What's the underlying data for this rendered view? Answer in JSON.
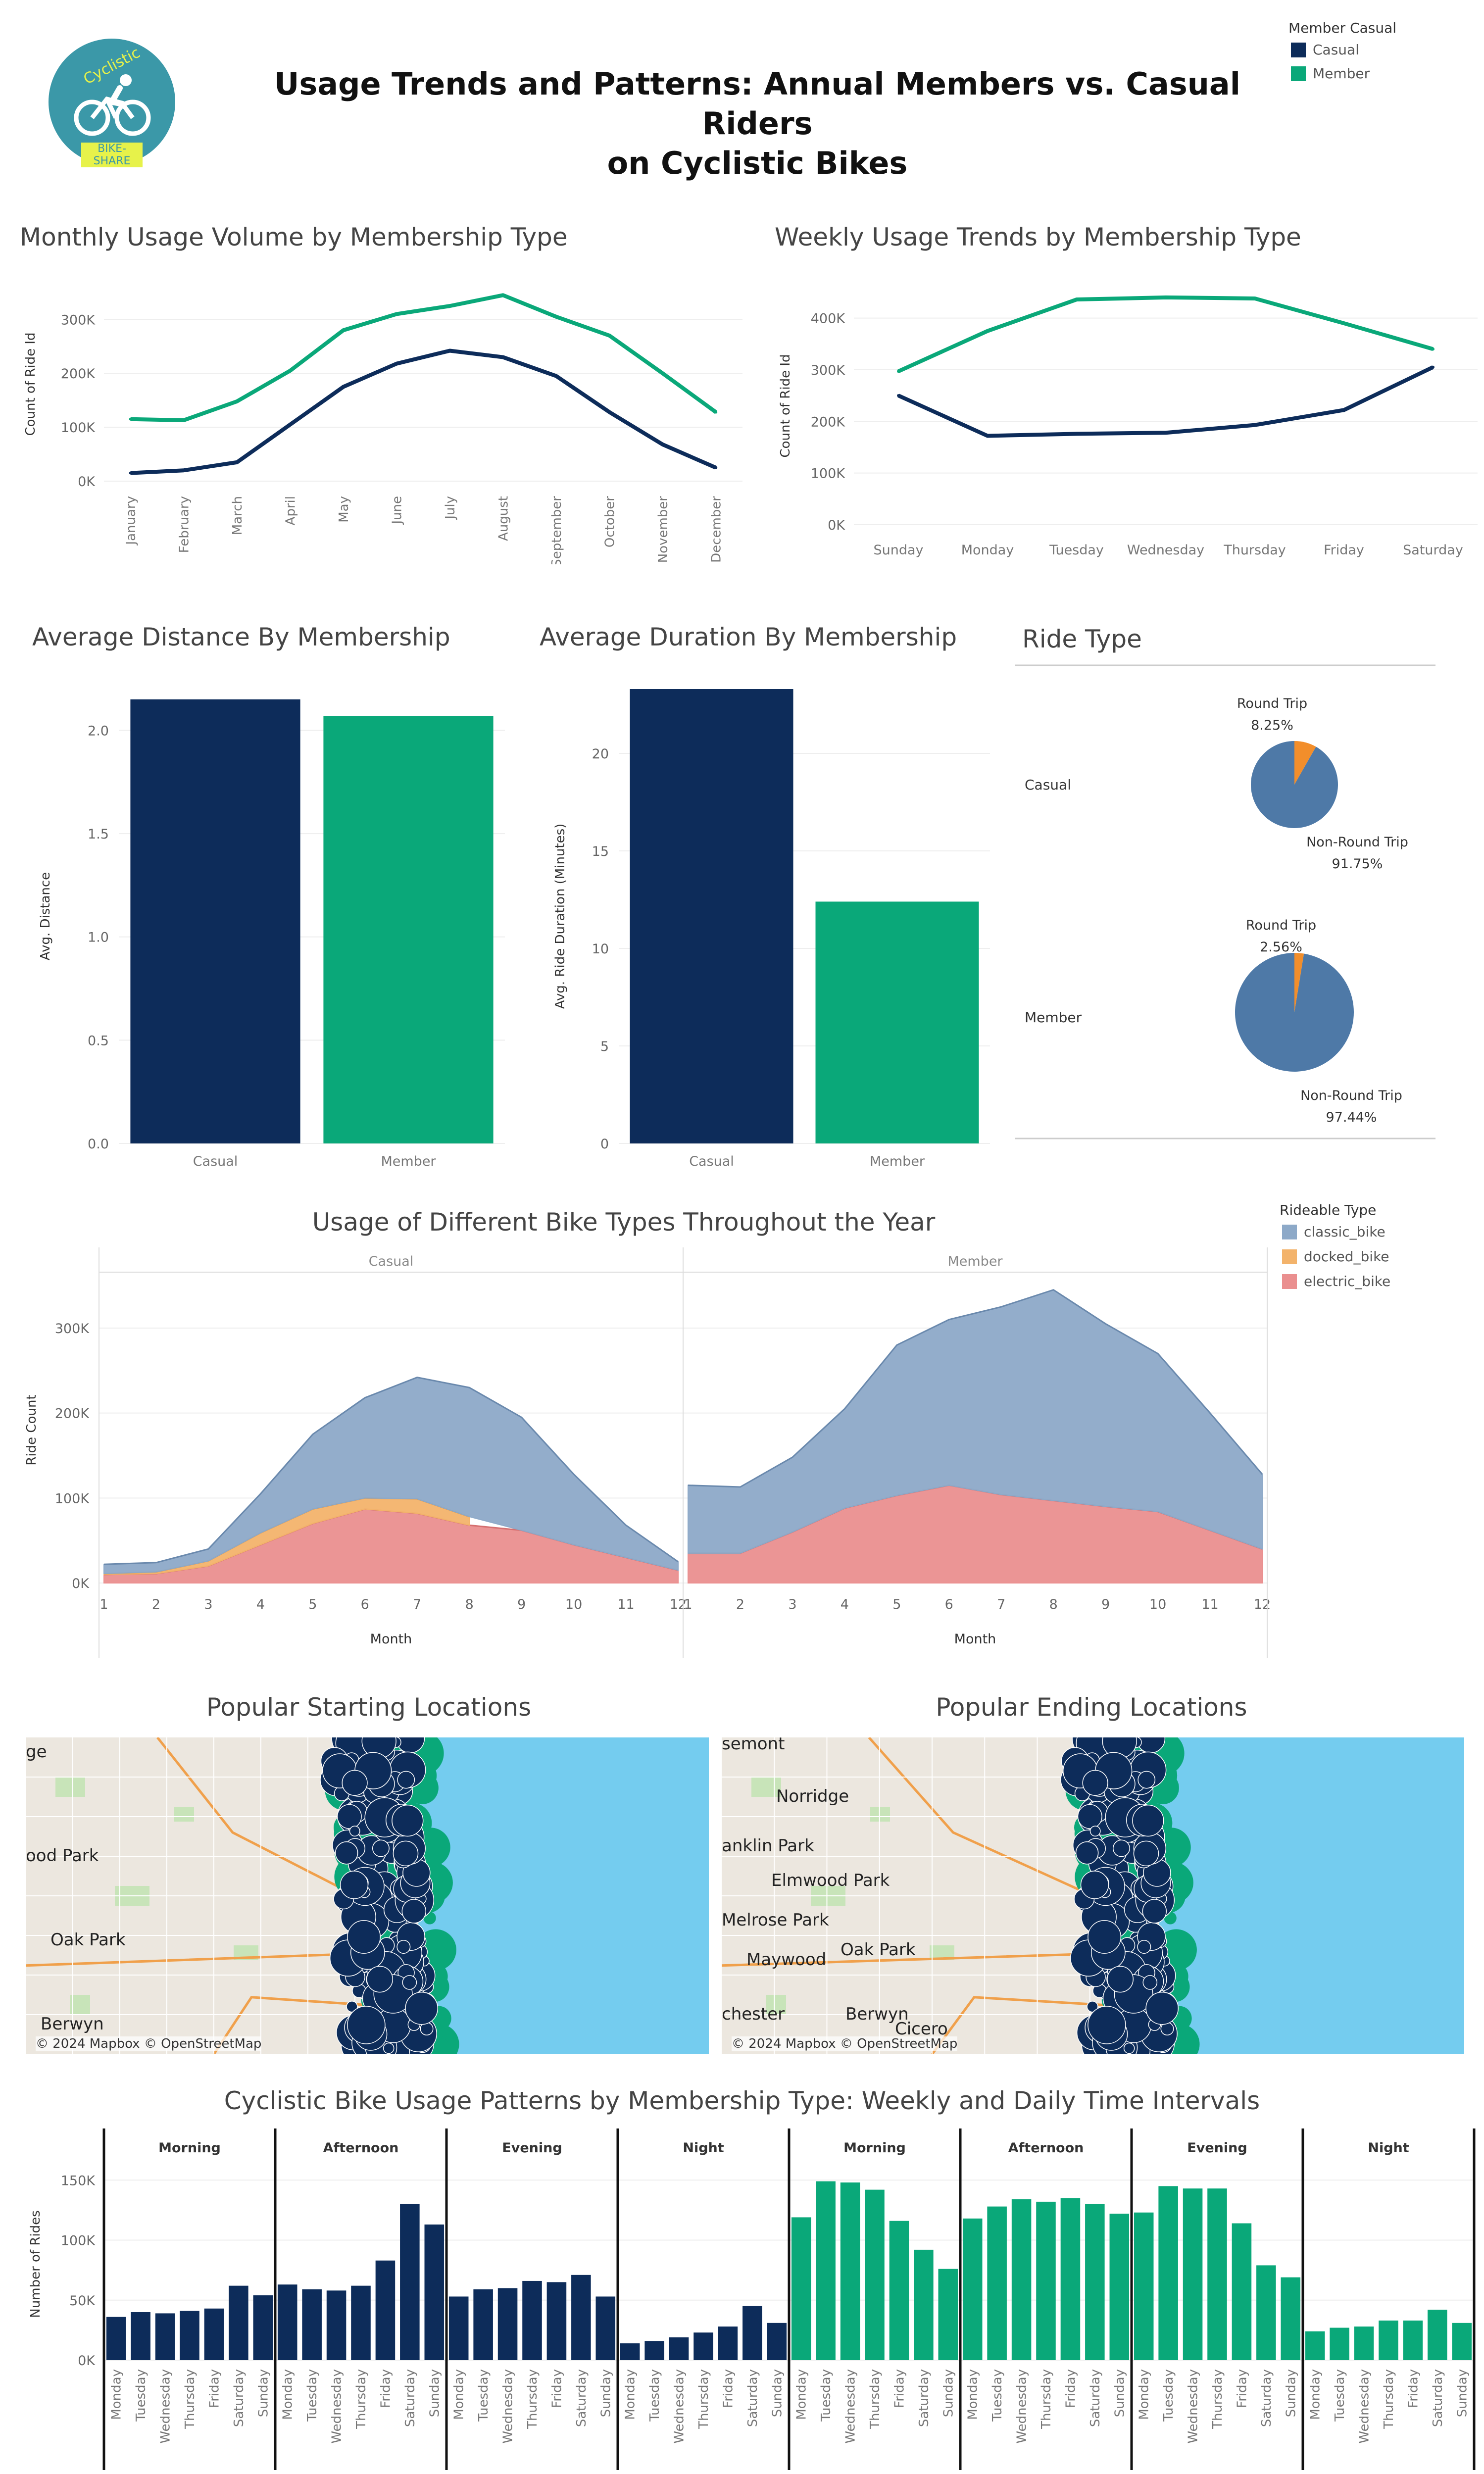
{
  "header": {
    "title_line1": "Usage Trends and Patterns: Annual Members vs. Casual Riders",
    "title_line2": "on Cyclistic Bikes",
    "logo_top": "Cyclistic",
    "logo_bottom": "BIKE-SHARE"
  },
  "legend_member": {
    "title": "Member Casual",
    "items": [
      {
        "label": "Casual",
        "color": "#0d2c5a"
      },
      {
        "label": "Member",
        "color": "#0aa879"
      }
    ]
  },
  "colors": {
    "casual": "#0d2c5a",
    "member": "#0aa879",
    "classic": "#8da9c8",
    "docked": "#f3b36b",
    "electric": "#ea8f8f",
    "pie_main": "#4e79a7",
    "pie_accent": "#f28e2b"
  },
  "monthly": {
    "title": "Monthly Usage Volume by Membership Type",
    "ylabel": "Count of Ride Id",
    "yticks": [
      "0K",
      "100K",
      "200K",
      "300K"
    ],
    "chart_data": {
      "type": "line",
      "categories": [
        "January",
        "February",
        "March",
        "April",
        "May",
        "June",
        "July",
        "August",
        "September",
        "October",
        "November",
        "December"
      ],
      "series": [
        {
          "name": "Casual",
          "values": [
            15000,
            20000,
            35000,
            105000,
            175000,
            218000,
            242000,
            230000,
            195000,
            128000,
            68000,
            25000
          ]
        },
        {
          "name": "Member",
          "values": [
            115000,
            113000,
            148000,
            205000,
            280000,
            310000,
            325000,
            345000,
            305000,
            270000,
            200000,
            128000
          ]
        }
      ],
      "ylim": [
        0,
        360000
      ]
    }
  },
  "weekly": {
    "title": "Weekly Usage Trends by Membership Type",
    "ylabel": "Count of Ride Id",
    "yticks": [
      "0K",
      "100K",
      "200K",
      "300K",
      "400K"
    ],
    "chart_data": {
      "type": "line",
      "categories": [
        "Sunday",
        "Monday",
        "Tuesday",
        "Wednesday",
        "Thursday",
        "Friday",
        "Saturday"
      ],
      "series": [
        {
          "name": "Casual",
          "values": [
            250000,
            172000,
            176000,
            178000,
            193000,
            222000,
            305000
          ]
        },
        {
          "name": "Member",
          "values": [
            297000,
            375000,
            436000,
            440000,
            438000,
            390000,
            340000
          ]
        }
      ],
      "ylim": [
        0,
        460000
      ]
    }
  },
  "distance": {
    "title": "Average Distance By Membership",
    "ylabel": "Avg. Distance",
    "yticks": [
      "0.0",
      "0.5",
      "1.0",
      "1.5",
      "2.0"
    ],
    "chart_data": {
      "type": "bar",
      "categories": [
        "Casual",
        "Member"
      ],
      "values": [
        2.15,
        2.07
      ],
      "ylim": [
        0,
        2.2
      ]
    }
  },
  "duration": {
    "title": "Average Duration  By Membership",
    "ylabel": "Avg. Ride Duration (Minutes)",
    "yticks": [
      "0",
      "5",
      "10",
      "15",
      "20"
    ],
    "chart_data": {
      "type": "bar",
      "categories": [
        "Casual",
        "Member"
      ],
      "values": [
        23.3,
        12.4
      ],
      "ylim": [
        0,
        23.3
      ]
    }
  },
  "ridetype": {
    "title": "Ride Type",
    "chart_data": [
      {
        "type": "pie",
        "row": "Casual",
        "slices": [
          {
            "label": "Round Trip",
            "value": 8.25,
            "text": "8.25%"
          },
          {
            "label": "Non-Round Trip",
            "value": 91.75,
            "text": "91.75%"
          }
        ]
      },
      {
        "type": "pie",
        "row": "Member",
        "slices": [
          {
            "label": "Round Trip",
            "value": 2.56,
            "text": "2.56%"
          },
          {
            "label": "Non-Round Trip",
            "value": 97.44,
            "text": "97.44%"
          }
        ]
      }
    ]
  },
  "biketypes": {
    "title": "Usage of Different Bike Types Throughout the Year",
    "ylabel": "Ride Count",
    "xlabel": "Month",
    "yticks": [
      "0K",
      "100K",
      "200K",
      "300K"
    ],
    "legend_title": "Rideable Type",
    "legend": [
      {
        "label": "classic_bike",
        "color": "#8da9c8"
      },
      {
        "label": "docked_bike",
        "color": "#f3b36b"
      },
      {
        "label": "electric_bike",
        "color": "#ea8f8f"
      }
    ],
    "chart_data": {
      "type": "area",
      "x": [
        1,
        2,
        3,
        4,
        5,
        6,
        7,
        8,
        9,
        10,
        11,
        12
      ],
      "ylim": [
        0,
        360000
      ],
      "panels": [
        {
          "name": "Casual",
          "series": [
            {
              "name": "electric_bike",
              "values": [
                10000,
                11000,
                20000,
                45000,
                70000,
                87000,
                82000,
                68000,
                62000,
                45000,
                30000,
                15000
              ]
            },
            {
              "name": "docked_bike",
              "values": [
                1000,
                2000,
                6000,
                14000,
                17000,
                13000,
                17000,
                10000,
                0,
                0,
                0,
                0
              ]
            },
            {
              "name": "classic_bike",
              "values": [
                11000,
                11000,
                14000,
                46000,
                88000,
                118000,
                143000,
                152000,
                133000,
                83000,
                38000,
                10000
              ]
            }
          ]
        },
        {
          "name": "Member",
          "series": [
            {
              "name": "electric_bike",
              "values": [
                35000,
                35000,
                60000,
                88000,
                103000,
                115000,
                104000,
                97000,
                90000,
                84000,
                62000,
                40000
              ]
            },
            {
              "name": "classic_bike",
              "values": [
                80000,
                78000,
                88000,
                117000,
                177000,
                195000,
                221000,
                248000,
                215000,
                186000,
                138000,
                88000
              ]
            }
          ]
        }
      ]
    }
  },
  "maps": {
    "start_title": "Popular Starting Locations",
    "end_title": "Popular Ending Locations",
    "attribution": "© 2024 Mapbox © OpenStreetMap",
    "start_labels": [
      "ge",
      "ood Park",
      "Oak Park",
      "Berwyn"
    ],
    "end_labels": [
      "Norridge",
      "anklin Park",
      "Elmwood Park",
      "Melrose Park",
      "Oak Park",
      "Maywood",
      "chester",
      "Berwyn",
      "semont",
      "Cicero"
    ]
  },
  "intervals": {
    "title": "Cyclistic Bike Usage Patterns by Membership Type: Weekly and Daily Time Intervals",
    "ylabel": "Number of Rides",
    "yticks": [
      "0K",
      "50K",
      "100K",
      "150K"
    ],
    "chart_data": {
      "type": "bar",
      "categories": [
        "Monday",
        "Tuesday",
        "Wednesday",
        "Thursday",
        "Friday",
        "Saturday",
        "Sunday"
      ],
      "ylim": [
        0,
        160000
      ],
      "panels": [
        {
          "group": "Casual",
          "interval": "Morning",
          "values": [
            36000,
            40000,
            39000,
            41000,
            43000,
            62000,
            54000
          ]
        },
        {
          "group": "Casual",
          "interval": "Afternoon",
          "values": [
            63000,
            59000,
            58000,
            62000,
            83000,
            130000,
            113000
          ]
        },
        {
          "group": "Casual",
          "interval": "Evening",
          "values": [
            53000,
            59000,
            60000,
            66000,
            65000,
            71000,
            53000
          ]
        },
        {
          "group": "Casual",
          "interval": "Night",
          "values": [
            14000,
            16000,
            19000,
            23000,
            28000,
            45000,
            31000
          ]
        },
        {
          "group": "Member",
          "interval": "Morning",
          "values": [
            119000,
            149000,
            148000,
            142000,
            116000,
            92000,
            76000
          ]
        },
        {
          "group": "Member",
          "interval": "Afternoon",
          "values": [
            118000,
            128000,
            134000,
            132000,
            135000,
            130000,
            122000
          ]
        },
        {
          "group": "Member",
          "interval": "Evening",
          "values": [
            123000,
            145000,
            143000,
            143000,
            114000,
            79000,
            69000
          ]
        },
        {
          "group": "Member",
          "interval": "Night",
          "values": [
            24000,
            27000,
            28000,
            33000,
            33000,
            42000,
            31000
          ]
        }
      ]
    }
  }
}
